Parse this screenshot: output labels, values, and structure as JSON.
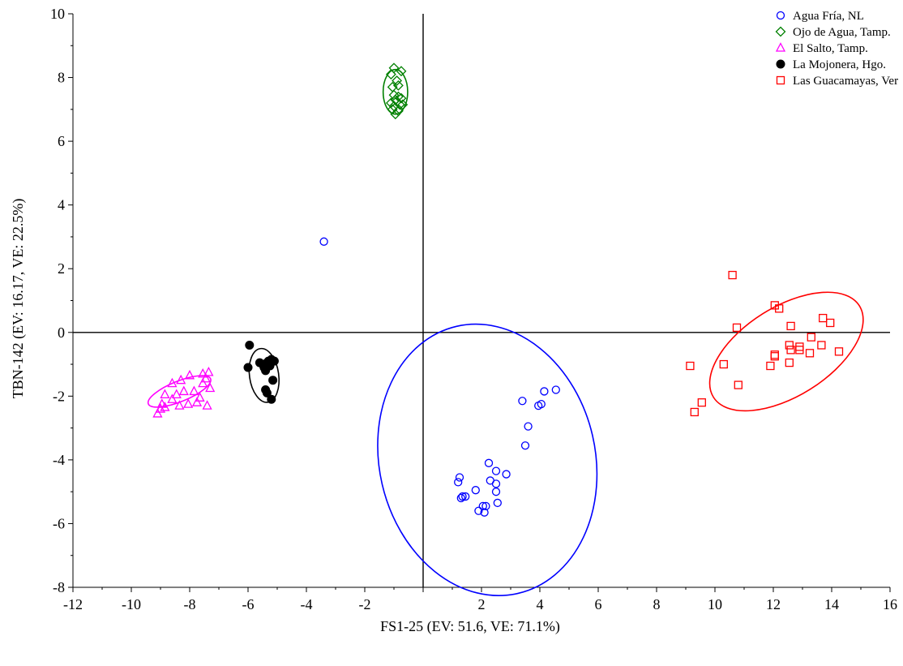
{
  "chart_data": {
    "type": "scatter",
    "xlabel": "FS1-25 (EV: 51.6, VE: 71.1%)",
    "ylabel": "TBN-142 (EV: 16.17, VE: 22.5%)",
    "xlim": [
      -12,
      16
    ],
    "ylim": [
      -8,
      10
    ],
    "x_ticks": [
      -12,
      -10,
      -8,
      -6,
      -4,
      -2,
      2,
      4,
      6,
      8,
      10,
      12,
      14,
      16
    ],
    "y_ticks": [
      -8,
      -6,
      -4,
      -2,
      0,
      2,
      4,
      6,
      8,
      10
    ],
    "reference_lines": {
      "x": 0,
      "y": 0
    },
    "grid": false,
    "legend_position": "top-right",
    "series": [
      {
        "name": "Agua Fría, NL",
        "marker": "open-circle",
        "color": "#0000ff",
        "ellipse": {
          "center": [
            2.2,
            -4.0
          ],
          "rx": 3.7,
          "ry": 4.3,
          "angle": -13
        },
        "points": [
          [
            -3.4,
            2.85
          ],
          [
            3.4,
            -2.15
          ],
          [
            3.6,
            -2.95
          ],
          [
            3.5,
            -3.55
          ],
          [
            3.95,
            -2.3
          ],
          [
            4.05,
            -2.25
          ],
          [
            4.15,
            -1.85
          ],
          [
            4.55,
            -1.8
          ],
          [
            1.25,
            -4.55
          ],
          [
            1.2,
            -4.7
          ],
          [
            1.35,
            -5.15
          ],
          [
            1.3,
            -5.2
          ],
          [
            1.45,
            -5.15
          ],
          [
            1.8,
            -4.95
          ],
          [
            2.05,
            -5.45
          ],
          [
            2.15,
            -5.45
          ],
          [
            1.9,
            -5.6
          ],
          [
            2.1,
            -5.65
          ],
          [
            2.25,
            -4.1
          ],
          [
            2.3,
            -4.65
          ],
          [
            2.5,
            -4.35
          ],
          [
            2.5,
            -4.75
          ],
          [
            2.5,
            -5.0
          ],
          [
            2.55,
            -5.35
          ],
          [
            2.85,
            -4.45
          ]
        ]
      },
      {
        "name": "Ojo de Agua, Tamp.",
        "marker": "open-diamond",
        "color": "#008000",
        "ellipse": {
          "center": [
            -0.95,
            7.55
          ],
          "rx": 0.42,
          "ry": 0.7,
          "angle": 0
        },
        "points": [
          [
            -1.0,
            8.3
          ],
          [
            -1.1,
            8.1
          ],
          [
            -0.75,
            8.2
          ],
          [
            -0.9,
            7.9
          ],
          [
            -0.85,
            7.75
          ],
          [
            -1.05,
            7.7
          ],
          [
            -1.0,
            7.45
          ],
          [
            -0.85,
            7.4
          ],
          [
            -0.75,
            7.35
          ],
          [
            -0.95,
            7.3
          ],
          [
            -1.1,
            7.2
          ],
          [
            -0.8,
            7.15
          ],
          [
            -1.0,
            7.1
          ],
          [
            -0.7,
            7.15
          ],
          [
            -1.05,
            7.0
          ],
          [
            -0.85,
            6.95
          ],
          [
            -0.95,
            6.85
          ]
        ]
      },
      {
        "name": "El Salto, Tamp.",
        "marker": "open-triangle",
        "color": "#ff00ff",
        "ellipse": {
          "center": [
            -8.35,
            -1.85
          ],
          "rx": 1.15,
          "ry": 0.32,
          "angle": -22
        },
        "points": [
          [
            -9.1,
            -2.55
          ],
          [
            -9.0,
            -2.4
          ],
          [
            -8.95,
            -2.25
          ],
          [
            -8.85,
            -2.35
          ],
          [
            -8.85,
            -1.95
          ],
          [
            -8.6,
            -2.1
          ],
          [
            -8.6,
            -1.6
          ],
          [
            -8.45,
            -1.95
          ],
          [
            -8.35,
            -2.3
          ],
          [
            -8.3,
            -1.5
          ],
          [
            -8.2,
            -1.85
          ],
          [
            -8.05,
            -2.25
          ],
          [
            -8.0,
            -1.35
          ],
          [
            -7.85,
            -1.85
          ],
          [
            -7.75,
            -2.2
          ],
          [
            -7.65,
            -2.05
          ],
          [
            -7.55,
            -1.3
          ],
          [
            -7.55,
            -1.6
          ],
          [
            -7.45,
            -1.45
          ],
          [
            -7.4,
            -2.3
          ],
          [
            -7.35,
            -1.25
          ],
          [
            -7.3,
            -1.75
          ]
        ]
      },
      {
        "name": "La Mojonera, Hgo.",
        "marker": "filled-circle",
        "color": "#000000",
        "ellipse": {
          "center": [
            -5.45,
            -1.35
          ],
          "rx": 0.5,
          "ry": 0.85,
          "angle": -8
        },
        "points": [
          [
            -5.95,
            -0.4
          ],
          [
            -6.0,
            -1.1
          ],
          [
            -5.6,
            -0.95
          ],
          [
            -5.5,
            -1.0
          ],
          [
            -5.45,
            -1.1
          ],
          [
            -5.4,
            -1.2
          ],
          [
            -5.35,
            -0.95
          ],
          [
            -5.3,
            -0.9
          ],
          [
            -5.2,
            -0.85
          ],
          [
            -5.1,
            -0.9
          ],
          [
            -5.4,
            -1.8
          ],
          [
            -5.35,
            -1.9
          ],
          [
            -5.15,
            -1.5
          ],
          [
            -5.2,
            -2.1
          ],
          [
            -5.25,
            -1.05
          ]
        ]
      },
      {
        "name": "Las Guacamayas, Ver",
        "marker": "open-square",
        "color": "#ff0000",
        "ellipse": {
          "center": [
            12.45,
            -0.6
          ],
          "rx": 2.95,
          "ry": 1.4,
          "angle": -32
        },
        "points": [
          [
            10.6,
            1.8
          ],
          [
            10.75,
            0.15
          ],
          [
            12.05,
            0.85
          ],
          [
            12.2,
            0.75
          ],
          [
            12.6,
            0.2
          ],
          [
            13.7,
            0.45
          ],
          [
            13.95,
            0.3
          ],
          [
            13.3,
            -0.15
          ],
          [
            12.05,
            -0.7
          ],
          [
            12.05,
            -0.75
          ],
          [
            12.55,
            -0.4
          ],
          [
            12.6,
            -0.55
          ],
          [
            12.9,
            -0.45
          ],
          [
            12.9,
            -0.55
          ],
          [
            13.25,
            -0.65
          ],
          [
            13.65,
            -0.4
          ],
          [
            14.25,
            -0.6
          ],
          [
            12.55,
            -0.95
          ],
          [
            11.9,
            -1.05
          ],
          [
            10.3,
            -1.0
          ],
          [
            9.15,
            -1.05
          ],
          [
            10.8,
            -1.65
          ],
          [
            9.55,
            -2.2
          ],
          [
            9.3,
            -2.5
          ]
        ]
      }
    ]
  }
}
